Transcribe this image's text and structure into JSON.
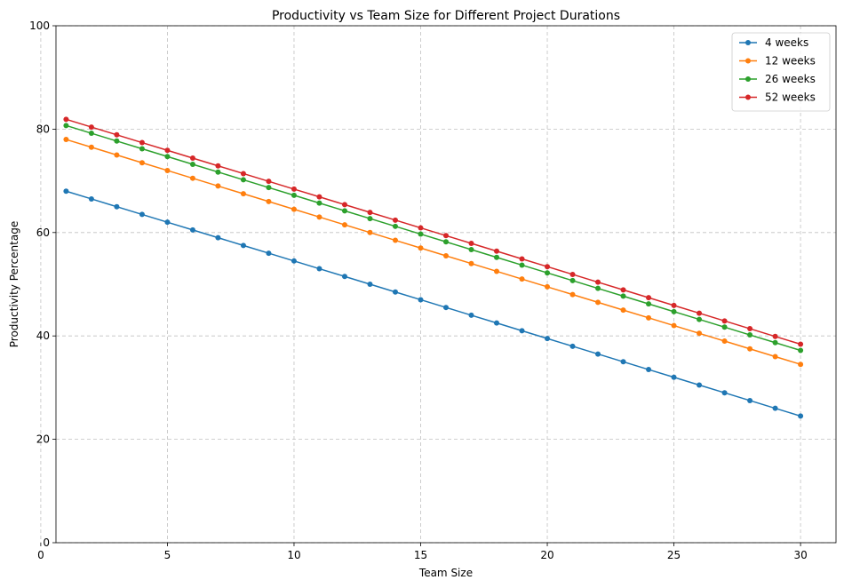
{
  "chart_data": {
    "type": "line",
    "title": "Productivity vs Team Size for Different Project Durations",
    "xlabel": "Team Size",
    "ylabel": "Productivity Percentage",
    "xlim": [
      0.6,
      31.4
    ],
    "ylim": [
      0,
      100
    ],
    "xticks": [
      0,
      5,
      10,
      15,
      20,
      25,
      30
    ],
    "yticks": [
      0,
      20,
      40,
      60,
      80,
      100
    ],
    "grid": true,
    "legend_position": "top-right",
    "x": [
      1,
      2,
      3,
      4,
      5,
      6,
      7,
      8,
      9,
      10,
      11,
      12,
      13,
      14,
      15,
      16,
      17,
      18,
      19,
      20,
      21,
      22,
      23,
      24,
      25,
      26,
      27,
      28,
      29,
      30
    ],
    "series": [
      {
        "name": "4 weeks",
        "color": "#1f77b4",
        "values": [
          68,
          66.5,
          65,
          63.5,
          62,
          60.5,
          59,
          57.5,
          56,
          54.5,
          53,
          51.5,
          50,
          48.5,
          47,
          45.5,
          44,
          42.5,
          41,
          39.5,
          38,
          36.5,
          35,
          33.5,
          32,
          30.5,
          29,
          27.5,
          26,
          24.5
        ]
      },
      {
        "name": "12 weeks",
        "color": "#ff7f0e",
        "values": [
          78,
          76.5,
          75,
          73.5,
          72,
          70.5,
          69,
          67.5,
          66,
          64.5,
          63,
          61.5,
          60,
          58.5,
          57,
          55.5,
          54,
          52.5,
          51,
          49.5,
          48,
          46.5,
          45,
          43.5,
          42,
          40.5,
          39,
          37.5,
          36,
          34.5
        ]
      },
      {
        "name": "26 weeks",
        "color": "#2ca02c",
        "values": [
          80.7,
          79.2,
          77.7,
          76.2,
          74.7,
          73.2,
          71.7,
          70.2,
          68.7,
          67.2,
          65.7,
          64.2,
          62.7,
          61.2,
          59.7,
          58.2,
          56.7,
          55.2,
          53.7,
          52.2,
          50.7,
          49.2,
          47.7,
          46.2,
          44.7,
          43.2,
          41.7,
          40.2,
          38.7,
          37.2
        ]
      },
      {
        "name": "52 weeks",
        "color": "#d62728",
        "values": [
          81.9,
          80.4,
          78.9,
          77.4,
          75.9,
          74.4,
          72.9,
          71.4,
          69.9,
          68.4,
          66.9,
          65.4,
          63.9,
          62.4,
          60.9,
          59.4,
          57.9,
          56.4,
          54.9,
          53.4,
          51.9,
          50.4,
          48.9,
          47.4,
          45.9,
          44.4,
          42.9,
          41.4,
          39.9,
          38.4
        ]
      }
    ]
  }
}
